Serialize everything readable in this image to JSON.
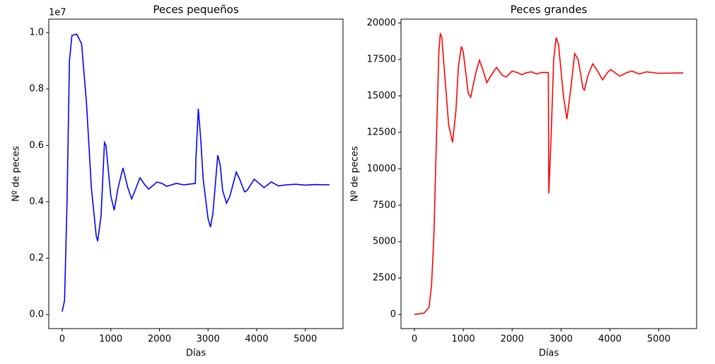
{
  "chart_data": [
    {
      "type": "line",
      "title": "Peces pequeños",
      "xlabel": "Días",
      "ylabel": "Nº de peces",
      "offset_text": "1e7",
      "color": "#0000ff",
      "xlim": [
        -275,
        5775
      ],
      "ylim": [
        -0.05,
        1.048
      ],
      "xticks": [
        0,
        1000,
        2000,
        3000,
        4000,
        5000
      ],
      "yticks": [
        {
          "value": 0,
          "label": "0.0"
        },
        0.2,
        0.4,
        0.6,
        0.8,
        {
          "value": 1,
          "label": "1.0"
        }
      ],
      "x": [
        0,
        50,
        100,
        150,
        200,
        300,
        400,
        500,
        600,
        700,
        730,
        800,
        870,
        900,
        1000,
        1070,
        1150,
        1250,
        1350,
        1430,
        1500,
        1600,
        1700,
        1780,
        1850,
        1950,
        2050,
        2150,
        2250,
        2350,
        2500,
        2600,
        2740,
        2750,
        2800,
        2850,
        2900,
        3000,
        3050,
        3100,
        3200,
        3250,
        3300,
        3380,
        3450,
        3580,
        3650,
        3750,
        3800,
        3950,
        4050,
        4150,
        4300,
        4450,
        4600,
        4800,
        5000,
        5200,
        5500
      ],
      "values": [
        0.01,
        0.05,
        0.4,
        0.9,
        0.99,
        0.995,
        0.96,
        0.75,
        0.45,
        0.28,
        0.26,
        0.35,
        0.61,
        0.6,
        0.42,
        0.37,
        0.45,
        0.52,
        0.45,
        0.41,
        0.44,
        0.485,
        0.46,
        0.445,
        0.455,
        0.47,
        0.465,
        0.455,
        0.46,
        0.465,
        0.46,
        0.462,
        0.465,
        0.55,
        0.73,
        0.62,
        0.48,
        0.34,
        0.31,
        0.36,
        0.565,
        0.53,
        0.44,
        0.395,
        0.42,
        0.505,
        0.48,
        0.435,
        0.44,
        0.48,
        0.465,
        0.45,
        0.47,
        0.456,
        0.46,
        0.462,
        0.459,
        0.461,
        0.46
      ]
    },
    {
      "type": "line",
      "title": "Peces grandes",
      "xlabel": "Días",
      "ylabel": "Nº de peces",
      "color": "#ff0000",
      "xlim": [
        -275,
        5775
      ],
      "ylim": [
        -965,
        20265
      ],
      "xticks": [
        0,
        1000,
        2000,
        3000,
        4000,
        5000
      ],
      "yticks": [
        0,
        2500,
        5000,
        7500,
        10000,
        12500,
        15000,
        17500,
        20000
      ],
      "x": [
        0,
        200,
        300,
        350,
        400,
        450,
        500,
        530,
        560,
        620,
        700,
        780,
        850,
        900,
        960,
        1000,
        1100,
        1150,
        1250,
        1330,
        1400,
        1480,
        1550,
        1680,
        1800,
        1880,
        2000,
        2100,
        2200,
        2300,
        2400,
        2500,
        2600,
        2740,
        2750,
        2800,
        2850,
        2900,
        2950,
        3050,
        3120,
        3200,
        3280,
        3350,
        3450,
        3480,
        3550,
        3650,
        3750,
        3850,
        3950,
        4020,
        4100,
        4200,
        4350,
        4450,
        4600,
        4750,
        5000,
        5500
      ],
      "values": [
        0,
        100,
        500,
        2000,
        5500,
        12000,
        18000,
        19300,
        19000,
        16500,
        13000,
        11800,
        14000,
        17000,
        18400,
        18000,
        15200,
        14900,
        16500,
        17450,
        16800,
        15900,
        16300,
        16950,
        16400,
        16300,
        16700,
        16600,
        16450,
        16600,
        16650,
        16500,
        16600,
        16600,
        8300,
        12500,
        17500,
        19000,
        18500,
        15000,
        13400,
        15500,
        17900,
        17500,
        15500,
        15400,
        16400,
        17200,
        16700,
        16100,
        16600,
        16800,
        16600,
        16350,
        16600,
        16700,
        16500,
        16650,
        16550,
        16580
      ]
    }
  ]
}
